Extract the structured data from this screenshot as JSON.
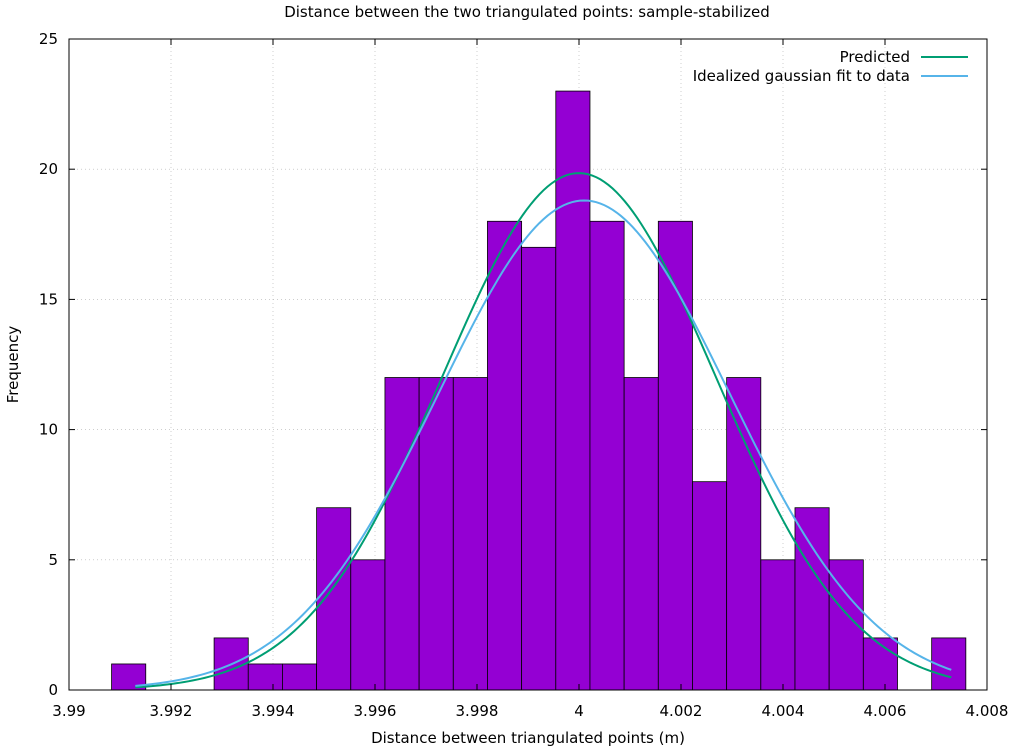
{
  "chart_data": {
    "type": "bar",
    "title": "Distance between the two triangulated points: sample-stabilized",
    "xlabel": "Distance between triangulated points (m)",
    "ylabel": "Frequency",
    "xlim": [
      3.99,
      4.008
    ],
    "ylim": [
      0,
      25
    ],
    "grid": true,
    "legend_position": "top-right",
    "x_ticks": [
      "3.99",
      "3.992",
      "3.994",
      "3.996",
      "3.998",
      "4",
      "4.002",
      "4.004",
      "4.006",
      "4.008"
    ],
    "x_tick_values": [
      3.99,
      3.992,
      3.994,
      3.996,
      3.998,
      4.0,
      4.002,
      4.004,
      4.006,
      4.008
    ],
    "y_ticks": [
      "0",
      "5",
      "10",
      "15",
      "20",
      "25"
    ],
    "y_tick_values": [
      0,
      5,
      10,
      15,
      20,
      25
    ],
    "bin_width": 0.00067,
    "bins": [
      {
        "center": 3.99117,
        "count": 1
      },
      {
        "center": 3.99184,
        "count": 0
      },
      {
        "center": 3.99251,
        "count": 0
      },
      {
        "center": 3.99318,
        "count": 2
      },
      {
        "center": 3.99385,
        "count": 1
      },
      {
        "center": 3.99452,
        "count": 1
      },
      {
        "center": 3.99519,
        "count": 7
      },
      {
        "center": 3.99586,
        "count": 5
      },
      {
        "center": 3.99653,
        "count": 12
      },
      {
        "center": 3.9972,
        "count": 12
      },
      {
        "center": 3.99787,
        "count": 12
      },
      {
        "center": 3.99854,
        "count": 18
      },
      {
        "center": 3.99921,
        "count": 17
      },
      {
        "center": 3.99988,
        "count": 23
      },
      {
        "center": 4.00055,
        "count": 18
      },
      {
        "center": 4.00122,
        "count": 12
      },
      {
        "center": 4.00189,
        "count": 18
      },
      {
        "center": 4.00256,
        "count": 8
      },
      {
        "center": 4.00323,
        "count": 12
      },
      {
        "center": 4.0039,
        "count": 5
      },
      {
        "center": 4.00457,
        "count": 7
      },
      {
        "center": 4.00524,
        "count": 5
      },
      {
        "center": 4.00591,
        "count": 2
      },
      {
        "center": 4.00658,
        "count": 0
      },
      {
        "center": 4.00725,
        "count": 2
      }
    ],
    "bar_color": "#9400d3",
    "series": [
      {
        "name": "Predicted",
        "type": "line",
        "color": "#009e73",
        "model": "gaussian",
        "peak": 19.85,
        "mean": 4.0,
        "sigma": 0.00268,
        "x_range": [
          3.9913,
          4.0073
        ]
      },
      {
        "name": "Idealized gaussian fit to data",
        "type": "line",
        "color": "#56b4e9",
        "model": "gaussian",
        "peak": 18.8,
        "mean": 4.0001,
        "sigma": 0.00285,
        "x_range": [
          3.9913,
          4.0073
        ]
      }
    ]
  }
}
